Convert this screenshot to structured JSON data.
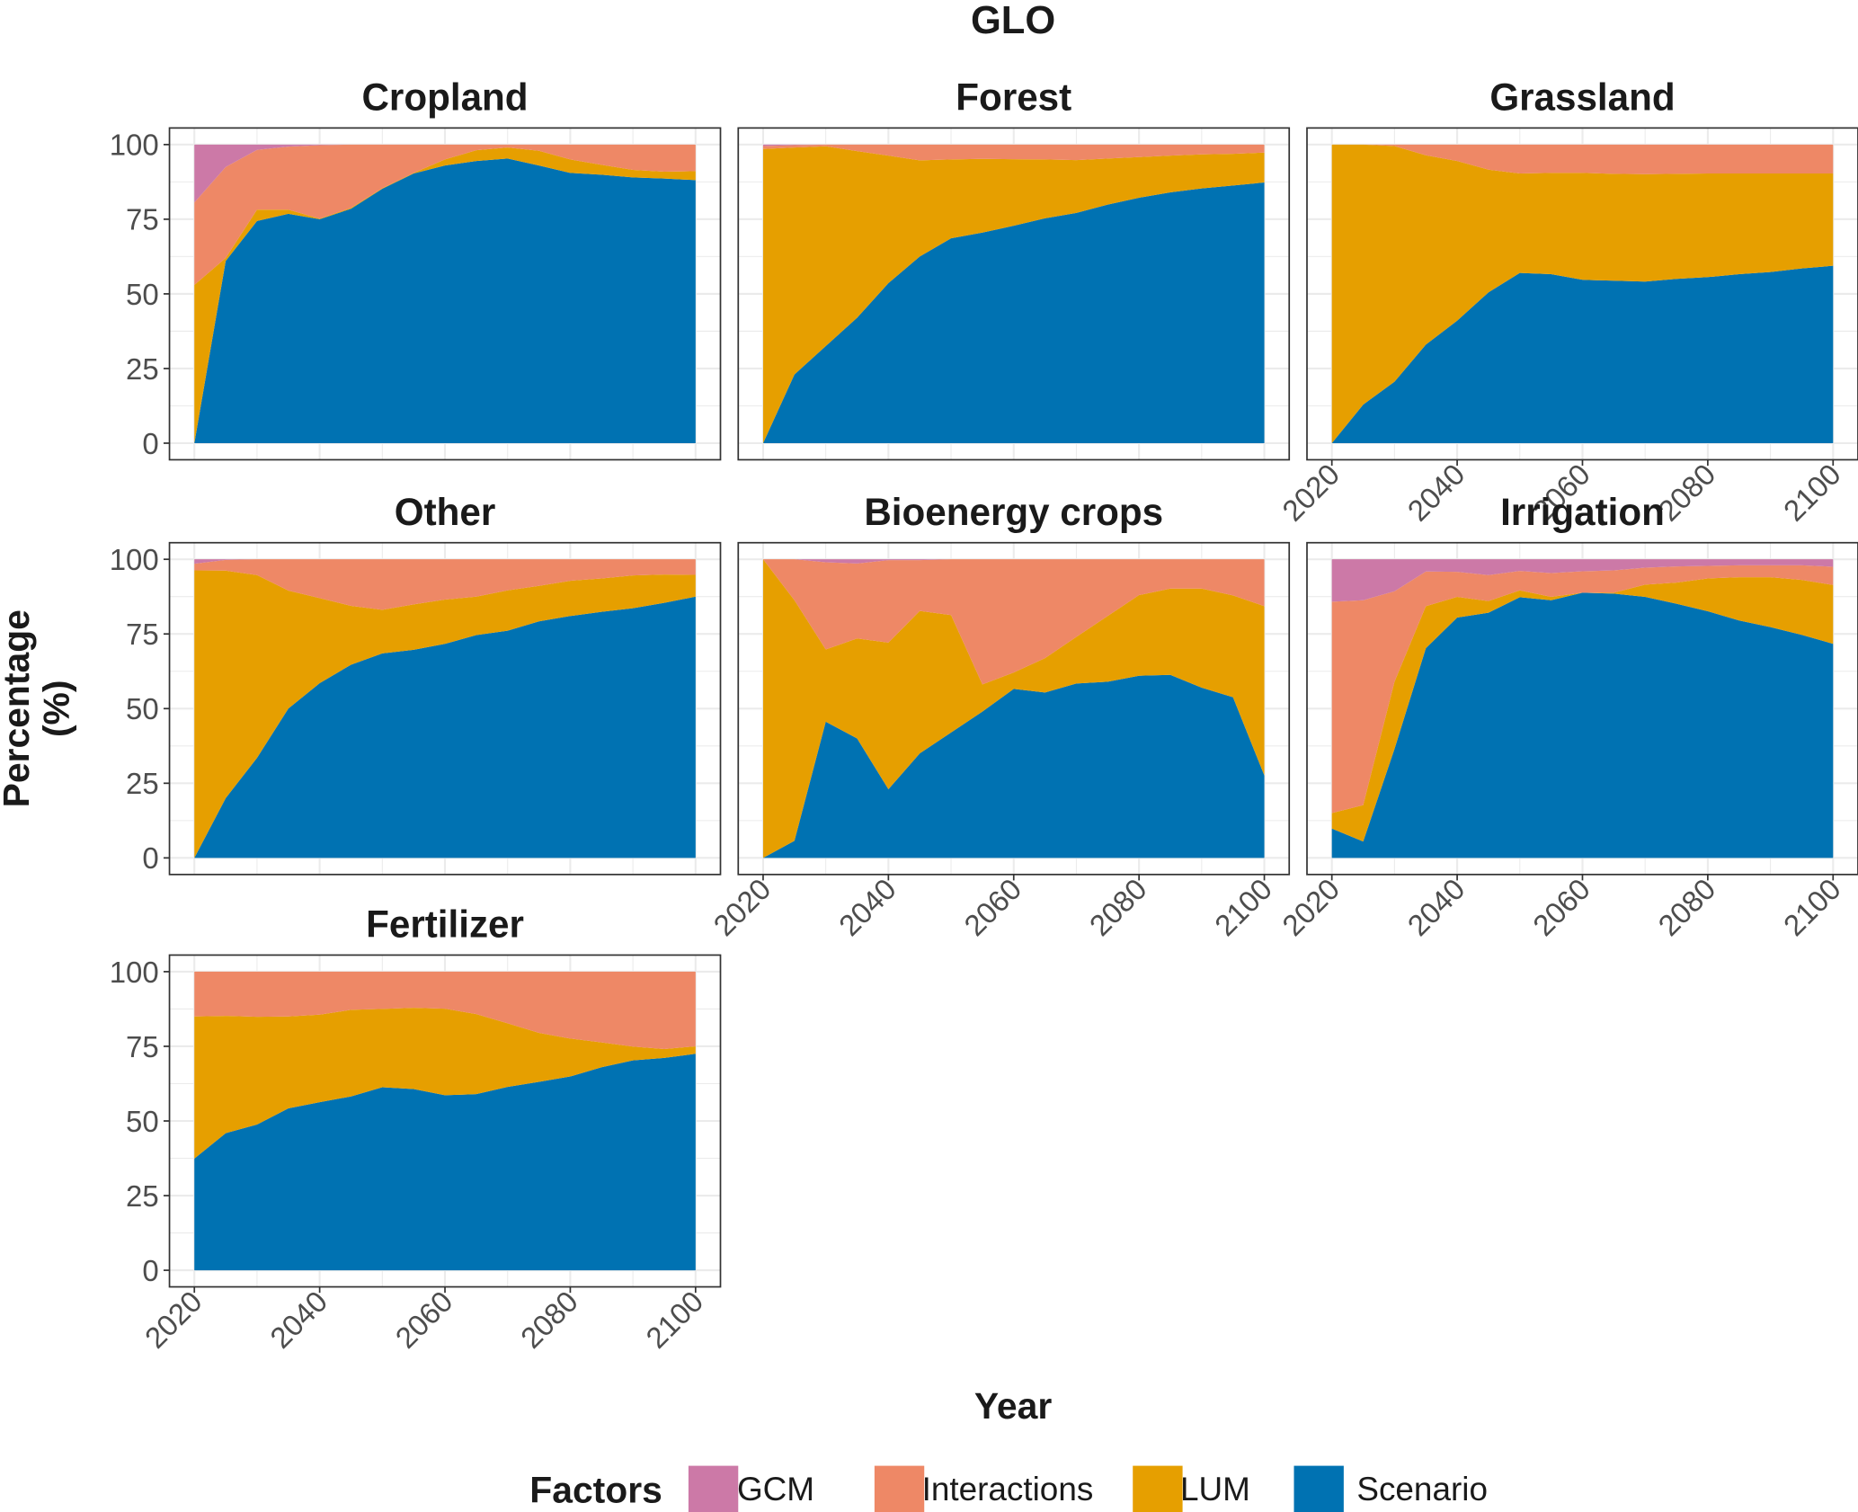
{
  "chart_data": {
    "type": "area",
    "title": "GLO",
    "xlabel": "Year",
    "ylabel": "Percentage\n(%)",
    "ylabel_lines": [
      "Percentage",
      "(%)"
    ],
    "x": [
      2020,
      2025,
      2030,
      2035,
      2040,
      2045,
      2050,
      2055,
      2060,
      2065,
      2070,
      2075,
      2080,
      2085,
      2090,
      2095,
      2100
    ],
    "xlim": [
      2020,
      2100
    ],
    "ylim": [
      0,
      100
    ],
    "x_ticks": [
      "2020",
      "2040",
      "2060",
      "2080",
      "2100"
    ],
    "y_ticks": [
      "0",
      "25",
      "50",
      "75",
      "100"
    ],
    "grid": true,
    "stacked": true,
    "legend": {
      "title": "Factors",
      "placement": "bottom",
      "entries": [
        {
          "name": "GCM",
          "color": "#CC79A7"
        },
        {
          "name": "Interactions",
          "color": "#EE8866"
        },
        {
          "name": "LUM",
          "color": "#E69F00"
        },
        {
          "name": "Scenario",
          "color": "#0072B2"
        }
      ]
    },
    "panels": [
      {
        "title": "Cropland",
        "series": [
          {
            "name": "Scenario",
            "values": [
              0,
              61,
              74.4,
              76.8,
              75,
              78.5,
              85.2,
              90.3,
              93,
              94.5,
              95.3,
              93,
              90.5,
              89.9,
              89,
              88.6,
              88.1
            ]
          },
          {
            "name": "LUM",
            "values": [
              53,
              1,
              3.8,
              1.4,
              0.2,
              0.3,
              0.2,
              0.2,
              2,
              3.6,
              3.7,
              4.9,
              4.5,
              3.3,
              2.5,
              2.3,
              3
            ]
          },
          {
            "name": "Interactions",
            "values": [
              27.6,
              30.5,
              20,
              21.1,
              24.6,
              21.2,
              14.6,
              9.5,
              5,
              1.9,
              1,
              2.1,
              5,
              6.8,
              8.5,
              9.1,
              8.9
            ]
          },
          {
            "name": "GCM",
            "values": [
              19.4,
              7.5,
              1.8,
              0.7,
              0.2,
              0,
              0,
              0,
              0,
              0,
              0,
              0,
              0,
              0,
              0,
              0,
              0
            ]
          }
        ]
      },
      {
        "title": "Forest",
        "series": [
          {
            "name": "Scenario",
            "values": [
              0,
              23,
              32.5,
              42,
              53.6,
              62.5,
              68.6,
              70.5,
              72.8,
              75.3,
              77.1,
              79.9,
              82.2,
              84,
              85.3,
              86.3,
              87.3
            ]
          },
          {
            "name": "LUM",
            "values": [
              98.5,
              76,
              66.9,
              55.8,
              42.7,
              32.2,
              26.4,
              24.7,
              22.3,
              19.7,
              17.7,
              15.4,
              13.6,
              12.3,
              11.4,
              10.6,
              10
            ]
          },
          {
            "name": "Interactions",
            "values": [
              1,
              0.8,
              0.6,
              2.2,
              3.7,
              5.3,
              5,
              4.8,
              4.9,
              5,
              5.2,
              4.7,
              4.2,
              3.7,
              3.3,
              3.1,
              2.7
            ]
          },
          {
            "name": "GCM",
            "values": [
              0.5,
              0.2,
              0,
              0,
              0,
              0,
              0,
              0,
              0,
              0,
              0,
              0,
              0,
              0,
              0,
              0,
              0
            ]
          }
        ]
      },
      {
        "title": "Grassland",
        "series": [
          {
            "name": "Scenario",
            "values": [
              0,
              12.9,
              20.6,
              33,
              41,
              50.5,
              57,
              56.6,
              54.7,
              54.4,
              54.1,
              55,
              55.6,
              56.6,
              57.3,
              58.5,
              59.4
            ]
          },
          {
            "name": "LUM",
            "values": [
              100,
              87.1,
              78.9,
              63.4,
              53.5,
              41.1,
              33.3,
              33.9,
              35.8,
              35.8,
              36,
              35.2,
              34.7,
              33.7,
              33,
              31.8,
              30.9
            ]
          },
          {
            "name": "Interactions",
            "values": [
              0,
              0,
              0.5,
              3.6,
              5.5,
              8.4,
              9.7,
              9.5,
              9.5,
              9.8,
              9.9,
              9.8,
              9.7,
              9.7,
              9.7,
              9.7,
              9.7
            ]
          },
          {
            "name": "GCM",
            "values": [
              0,
              0,
              0,
              0,
              0,
              0,
              0,
              0,
              0,
              0,
              0,
              0,
              0,
              0,
              0,
              0,
              0
            ]
          }
        ]
      },
      {
        "title": "Other",
        "series": [
          {
            "name": "Scenario",
            "values": [
              0,
              20,
              33.5,
              50,
              58.5,
              64.7,
              68.5,
              69.7,
              71.7,
              74.6,
              76.1,
              79.2,
              81,
              82.4,
              83.6,
              85.4,
              87.5
            ]
          },
          {
            "name": "LUM",
            "values": [
              96.3,
              76.2,
              61.2,
              39.5,
              28.5,
              19.7,
              14.6,
              15.2,
              14.8,
              12.9,
              13.5,
              11.9,
              11.8,
              11.2,
              11,
              9.5,
              7.3
            ]
          },
          {
            "name": "Interactions",
            "values": [
              2.2,
              3.6,
              5.3,
              10.5,
              13,
              15.6,
              16.9,
              15.1,
              13.5,
              12.5,
              10.4,
              8.9,
              7.2,
              6.4,
              5.4,
              5.1,
              5.2
            ]
          },
          {
            "name": "GCM",
            "values": [
              1.5,
              0.2,
              0,
              0,
              0,
              0,
              0,
              0,
              0,
              0,
              0,
              0,
              0,
              0,
              0,
              0,
              0
            ]
          }
        ]
      },
      {
        "title": "Bioenergy crops",
        "series": [
          {
            "name": "Scenario",
            "values": [
              0,
              5.7,
              45.6,
              40,
              23,
              35,
              42,
              49,
              56.6,
              55.4,
              58.4,
              59,
              61,
              61.3,
              57,
              53.8,
              27.6
            ]
          },
          {
            "name": "LUM",
            "values": [
              100,
              80.6,
              24.2,
              33.5,
              49.1,
              47.7,
              39.3,
              9.1,
              5.5,
              11.5,
              15.6,
              22,
              27,
              28.9,
              33.2,
              34.1,
              56.7
            ]
          },
          {
            "name": "Interactions",
            "values": [
              0,
              13.7,
              29.2,
              25.1,
              27.6,
              17,
              18.7,
              41.9,
              37.9,
              33.1,
              26,
              19,
              12,
              9.8,
              9.8,
              12.1,
              15.7
            ]
          },
          {
            "name": "GCM",
            "values": [
              0,
              0,
              1,
              1.4,
              0.3,
              0.3,
              0,
              0,
              0,
              0,
              0,
              0,
              0,
              0,
              0,
              0,
              0
            ]
          }
        ]
      },
      {
        "title": "Irrigation",
        "series": [
          {
            "name": "Scenario",
            "values": [
              9.8,
              5.5,
              36.5,
              70.2,
              80.5,
              82.1,
              87.3,
              86.3,
              88.8,
              88.5,
              87.4,
              85.1,
              82.6,
              79.5,
              77.3,
              74.7,
              71.7
            ]
          },
          {
            "name": "LUM",
            "values": [
              5.2,
              12.2,
              22.5,
              14.1,
              6.9,
              3.9,
              2.3,
              1.1,
              0,
              0.3,
              4.1,
              7.1,
              11,
              14.5,
              16.7,
              18.4,
              19.7
            ]
          },
          {
            "name": "Interactions",
            "values": [
              70.8,
              68.6,
              30.3,
              11.6,
              8.4,
              8.7,
              6.5,
              8,
              7.2,
              7.5,
              5.7,
              5.4,
              4.2,
              4,
              4,
              4.9,
              6.1
            ]
          },
          {
            "name": "GCM",
            "values": [
              14.2,
              13.7,
              10.7,
              4.1,
              4.2,
              5.3,
              3.9,
              4.6,
              4,
              3.7,
              2.8,
              2.4,
              2.2,
              2,
              2,
              2,
              2.5
            ]
          }
        ]
      },
      {
        "title": "Fertilizer",
        "series": [
          {
            "name": "Scenario",
            "values": [
              37.4,
              45.9,
              48.8,
              54.2,
              56.3,
              58.2,
              61.3,
              60.7,
              58.6,
              59,
              61.4,
              63.1,
              64.9,
              68,
              70.3,
              71.1,
              72.5
            ]
          },
          {
            "name": "LUM",
            "values": [
              47.6,
              39.3,
              36.1,
              30.8,
              29.3,
              29,
              26.2,
              27.2,
              29,
              26.8,
              21.3,
              16.4,
              12.7,
              8.3,
              4.6,
              3,
              2.5
            ]
          },
          {
            "name": "Interactions",
            "values": [
              15,
              14.8,
              15.1,
              15,
              14.4,
              12.8,
              12.5,
              12.1,
              12.4,
              14.2,
              17.3,
              20.5,
              22.4,
              23.7,
              25.1,
              25.9,
              25
            ]
          },
          {
            "name": "GCM",
            "values": [
              0,
              0,
              0,
              0,
              0,
              0,
              0,
              0,
              0,
              0,
              0,
              0,
              0,
              0,
              0,
              0,
              0
            ]
          }
        ]
      }
    ]
  }
}
